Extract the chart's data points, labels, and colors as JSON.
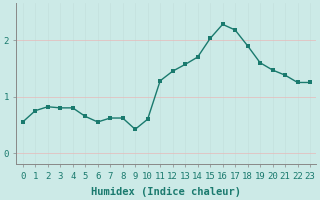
{
  "title": "",
  "xlabel": "Humidex (Indice chaleur)",
  "ylabel": "",
  "x": [
    0,
    1,
    2,
    3,
    4,
    5,
    6,
    7,
    8,
    9,
    10,
    11,
    12,
    13,
    14,
    15,
    16,
    17,
    18,
    19,
    20,
    21,
    22,
    23
  ],
  "y": [
    0.55,
    0.75,
    0.82,
    0.8,
    0.8,
    0.65,
    0.55,
    0.62,
    0.62,
    0.42,
    0.6,
    1.28,
    1.45,
    1.57,
    1.7,
    2.03,
    2.28,
    2.18,
    1.9,
    1.6,
    1.47,
    1.38,
    1.25,
    1.25
  ],
  "line_color": "#1a7a6e",
  "marker_color": "#1a7a6e",
  "bg_color": "#cceae7",
  "grid_color_v": "#c4e0dd",
  "grid_color_h": "#e8b8b8",
  "tick_label_color": "#1a7a6e",
  "xlabel_color": "#1a7a6e",
  "ylim": [
    -0.2,
    2.65
  ],
  "xlim": [
    -0.5,
    23.5
  ],
  "yticks": [
    0,
    1,
    2
  ],
  "xticks": [
    0,
    1,
    2,
    3,
    4,
    5,
    6,
    7,
    8,
    9,
    10,
    11,
    12,
    13,
    14,
    15,
    16,
    17,
    18,
    19,
    20,
    21,
    22,
    23
  ],
  "xlabel_fontsize": 7.5,
  "tick_fontsize": 6.5,
  "linewidth": 1.0,
  "markersize": 2.5
}
